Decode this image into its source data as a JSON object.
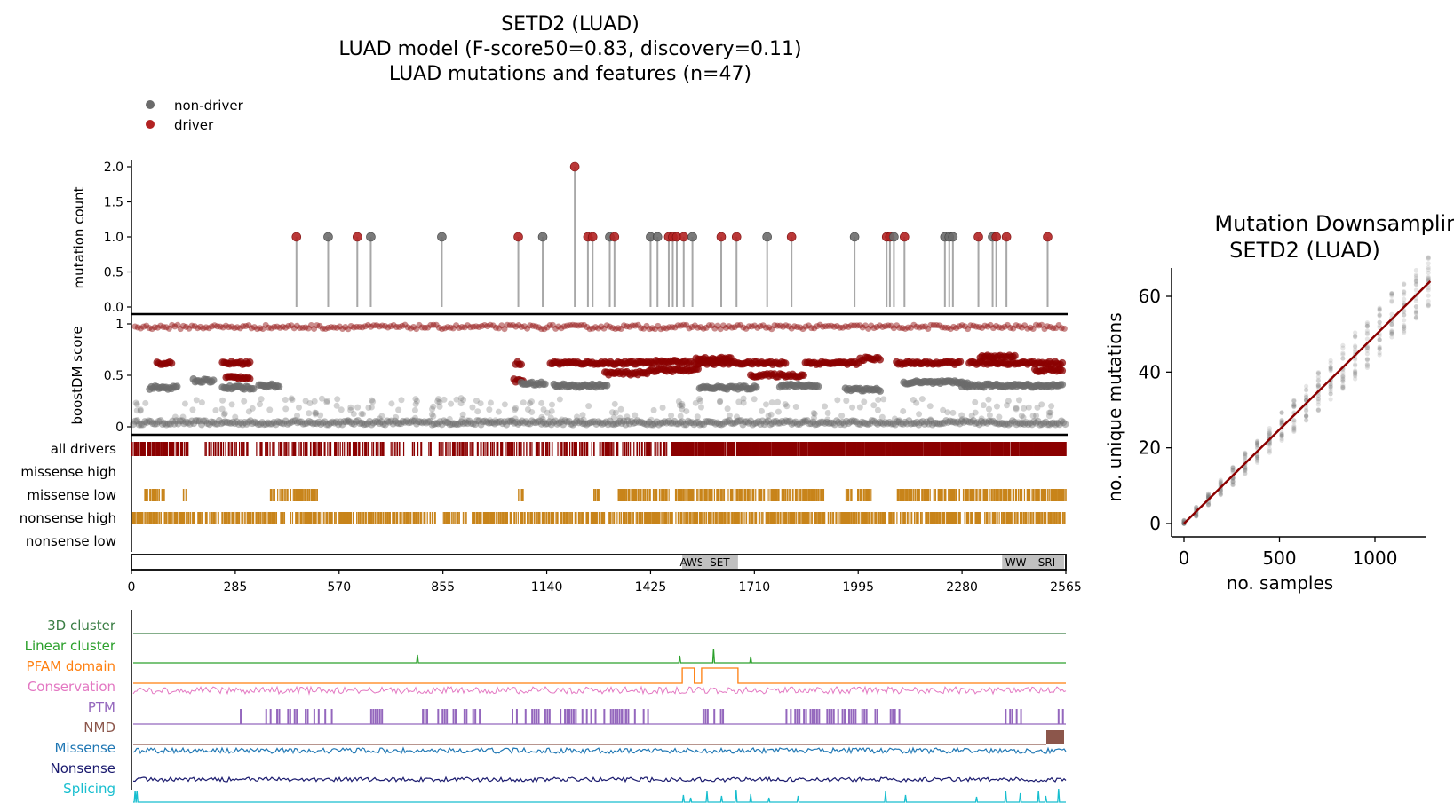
{
  "titles": {
    "main": [
      "SETD2 (LUAD)",
      "LUAD model (F-score50=0.83, discovery=0.11)",
      "LUAD mutations and features (n=47)"
    ],
    "side": [
      "Mutation Downsampling",
      "SETD2 (LUAD)"
    ]
  },
  "legend": {
    "placement": "top-left",
    "items": [
      {
        "label": "non-driver",
        "color": "#6b6b6b"
      },
      {
        "label": "driver",
        "color": "#b22222"
      }
    ]
  },
  "colors": {
    "driver": "#b22222",
    "driver_dark": "#8b0000",
    "nondriver": "#6b6b6b",
    "track_gold": "#c8841a",
    "axis": "#000000"
  },
  "chart_data": [
    {
      "type": "scatter",
      "name": "mutation-counts",
      "ylabel": "mutation count",
      "ylim": [
        0,
        2.1
      ],
      "yticks": [
        "0.0",
        "0.5",
        "1.0",
        "1.5",
        "2.0"
      ],
      "xlim": [
        0,
        2565
      ],
      "points": [
        [
          453,
          1,
          1
        ],
        [
          540,
          1,
          0
        ],
        [
          620,
          1,
          1
        ],
        [
          657,
          1,
          0
        ],
        [
          852,
          1,
          0
        ],
        [
          1062,
          1,
          1
        ],
        [
          1129,
          1,
          0
        ],
        [
          1217,
          2,
          1
        ],
        [
          1253,
          1,
          1
        ],
        [
          1266,
          1,
          1
        ],
        [
          1313,
          1,
          0
        ],
        [
          1326,
          1,
          1
        ],
        [
          1425,
          1,
          0
        ],
        [
          1444,
          1,
          0
        ],
        [
          1475,
          1,
          1
        ],
        [
          1486,
          1,
          1
        ],
        [
          1497,
          1,
          1
        ],
        [
          1516,
          1,
          1
        ],
        [
          1540,
          1,
          0
        ],
        [
          1619,
          1,
          1
        ],
        [
          1661,
          1,
          1
        ],
        [
          1745,
          1,
          0
        ],
        [
          1812,
          1,
          1
        ],
        [
          1985,
          1,
          0
        ],
        [
          2073,
          1,
          1
        ],
        [
          2082,
          1,
          1
        ],
        [
          2093,
          1,
          0
        ],
        [
          2122,
          1,
          1
        ],
        [
          2233,
          1,
          0
        ],
        [
          2245,
          1,
          0
        ],
        [
          2255,
          1,
          0
        ],
        [
          2325,
          1,
          1
        ],
        [
          2364,
          1,
          0
        ],
        [
          2374,
          1,
          1
        ],
        [
          2402,
          1,
          1
        ],
        [
          2515,
          1,
          1
        ]
      ]
    },
    {
      "type": "scatter",
      "name": "boostdm-score",
      "ylabel": "boostDM score",
      "ylim": [
        0,
        1
      ],
      "yticks": [
        "0",
        "0.5",
        "1"
      ],
      "xlim": [
        0,
        2565
      ]
    },
    {
      "type": "table",
      "name": "driver-tracks",
      "tracks": [
        "all drivers",
        "missense high",
        "missense low",
        "nonsense high",
        "nonsense low"
      ]
    },
    {
      "type": "bar",
      "name": "domains",
      "domains": [
        {
          "label": "AWS",
          "start": 1512,
          "end": 1565
        },
        {
          "label": "SET",
          "start": 1565,
          "end": 1665
        },
        {
          "label": "WW",
          "start": 2390,
          "end": 2465
        },
        {
          "label": "SRI",
          "start": 2465,
          "end": 2560
        }
      ],
      "xticks": [
        "0",
        "285",
        "570",
        "855",
        "1140",
        "1425",
        "1710",
        "1995",
        "2280",
        "2565"
      ]
    },
    {
      "type": "line",
      "name": "feature-tracks",
      "tracks": [
        {
          "label": "3D cluster",
          "color": "#3a7d44"
        },
        {
          "label": "Linear cluster",
          "color": "#2ca02c"
        },
        {
          "label": "PFAM domain",
          "color": "#ff7f0e"
        },
        {
          "label": "Conservation",
          "color": "#e377c2"
        },
        {
          "label": "PTM",
          "color": "#9467bd"
        },
        {
          "label": "NMD",
          "color": "#8c564b"
        },
        {
          "label": "Missense",
          "color": "#1f77b4"
        },
        {
          "label": "Nonsense",
          "color": "#1a1a6e"
        },
        {
          "label": "Splicing",
          "color": "#17becf"
        }
      ]
    },
    {
      "type": "scatter",
      "name": "mutation-downsampling",
      "xlabel": "no. samples",
      "ylabel": "no. unique mutations",
      "xlim": [
        0,
        1300
      ],
      "ylim": [
        0,
        65
      ],
      "xticks": [
        "0",
        "500",
        "1000"
      ],
      "yticks": [
        "0",
        "20",
        "40",
        "60"
      ],
      "fit_line": {
        "x": [
          0,
          1290
        ],
        "y": [
          0,
          64
        ],
        "color": "#8b0000"
      }
    }
  ]
}
